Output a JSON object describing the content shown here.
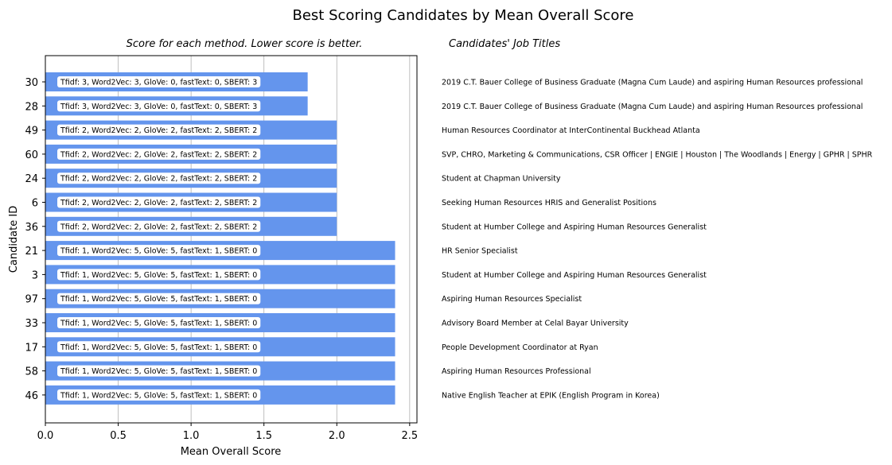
{
  "chart_data": {
    "type": "bar",
    "orientation": "horizontal",
    "title": "Best Scoring Candidates by Mean Overall Score",
    "subtitle": "Score for each method. Lower score is better.",
    "side_title": "Candidates' Job Titles",
    "xlabel": "Mean Overall Score",
    "ylabel": "Candidate ID",
    "xlim": [
      0,
      2.55
    ],
    "xticks": [
      "0.0",
      "0.5",
      "1.0",
      "1.5",
      "2.0",
      "2.5"
    ],
    "xtick_values": [
      0,
      0.5,
      1.0,
      1.5,
      2.0,
      2.5
    ],
    "grid": "vertical",
    "bar_color": "#6495ED",
    "categories": [
      "30",
      "28",
      "49",
      "60",
      "24",
      "6",
      "36",
      "21",
      "3",
      "97",
      "33",
      "17",
      "58",
      "46"
    ],
    "values": [
      1.8,
      1.8,
      2.0,
      2.0,
      2.0,
      2.0,
      2.0,
      2.4,
      2.4,
      2.4,
      2.4,
      2.4,
      2.4,
      2.4
    ],
    "bar_labels": [
      "Tfidf: 3, Word2Vec: 3, GloVe: 0, fastText: 0, SBERT: 3",
      "Tfidf: 3, Word2Vec: 3, GloVe: 0, fastText: 0, SBERT: 3",
      "Tfidf: 2, Word2Vec: 2, GloVe: 2, fastText: 2, SBERT: 2",
      "Tfidf: 2, Word2Vec: 2, GloVe: 2, fastText: 2, SBERT: 2",
      "Tfidf: 2, Word2Vec: 2, GloVe: 2, fastText: 2, SBERT: 2",
      "Tfidf: 2, Word2Vec: 2, GloVe: 2, fastText: 2, SBERT: 2",
      "Tfidf: 2, Word2Vec: 2, GloVe: 2, fastText: 2, SBERT: 2",
      "Tfidf: 1, Word2Vec: 5, GloVe: 5, fastText: 1, SBERT: 0",
      "Tfidf: 1, Word2Vec: 5, GloVe: 5, fastText: 1, SBERT: 0",
      "Tfidf: 1, Word2Vec: 5, GloVe: 5, fastText: 1, SBERT: 0",
      "Tfidf: 1, Word2Vec: 5, GloVe: 5, fastText: 1, SBERT: 0",
      "Tfidf: 1, Word2Vec: 5, GloVe: 5, fastText: 1, SBERT: 0",
      "Tfidf: 1, Word2Vec: 5, GloVe: 5, fastText: 1, SBERT: 0",
      "Tfidf: 1, Word2Vec: 5, GloVe: 5, fastText: 1, SBERT: 0"
    ],
    "job_titles": [
      "2019 C.T. Bauer College of Business Graduate (Magna Cum Laude) and aspiring Human Resources professional",
      "2019 C.T. Bauer College of Business Graduate (Magna Cum Laude) and aspiring Human Resources professional",
      "Human Resources Coordinator at InterContinental Buckhead Atlanta",
      "SVP, CHRO, Marketing & Communications, CSR Officer | ENGIE | Houston | The Woodlands | Energy | GPHR | SPHR",
      "Student at Chapman University",
      "Seeking Human Resources HRIS and Generalist Positions",
      "Student at Humber College and Aspiring Human Resources Generalist",
      "HR Senior Specialist",
      "Student at Humber College and Aspiring Human Resources Generalist",
      "Aspiring Human Resources Specialist",
      "Advisory Board Member at Celal Bayar University",
      "People Development Coordinator at Ryan",
      "Aspiring Human Resources Professional",
      "Native English Teacher at EPIK (English Program in Korea)"
    ]
  }
}
